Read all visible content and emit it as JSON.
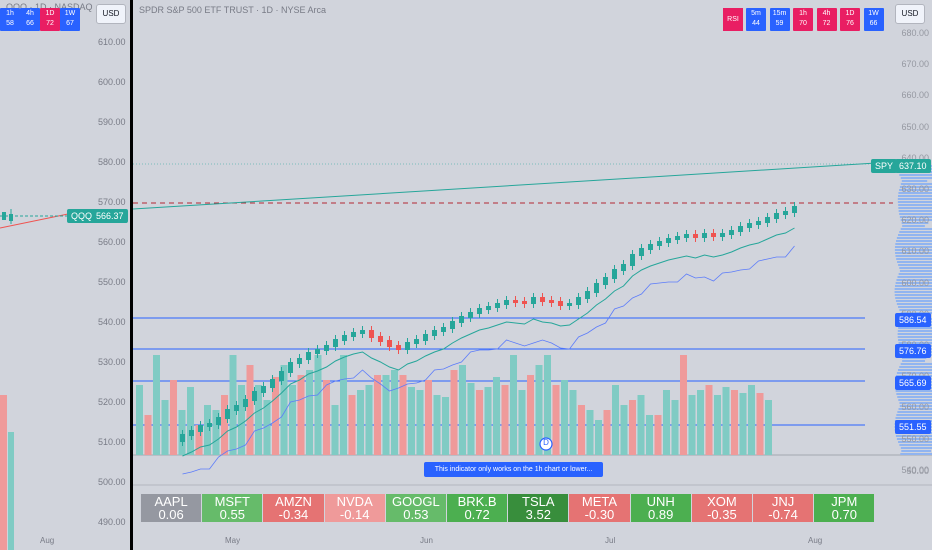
{
  "left_chart": {
    "title": "QQQ · 1D · NASDAQ",
    "timeframes": [
      {
        "label": "1h",
        "value": "58",
        "color": "#2962ff"
      },
      {
        "label": "4h",
        "value": "66",
        "color": "#2962ff"
      },
      {
        "label": "1D",
        "value": "72",
        "color": "#e91e63"
      },
      {
        "label": "1W",
        "value": "67",
        "color": "#2962ff"
      }
    ],
    "price_axis": [
      "610.00",
      "600.00",
      "590.00",
      "580.00",
      "570.00",
      "560.00",
      "550.00",
      "540.00",
      "530.00",
      "520.00",
      "510.00",
      "500.00",
      "490.00"
    ],
    "symbol_tag": "QQQ",
    "price_tag": "566.37",
    "month": "Aug"
  },
  "main_chart": {
    "title": "SPDR S&P 500 ETF TRUST · 1D · NYSE Arca",
    "currency": "USD",
    "indicator_label": "RSI",
    "timeframes": [
      {
        "label": "5m",
        "value": "44"
      },
      {
        "label": "15m",
        "value": "59"
      },
      {
        "label": "1h",
        "value": "70"
      },
      {
        "label": "4h",
        "value": "72"
      },
      {
        "label": "1D",
        "value": "76"
      },
      {
        "label": "1W",
        "value": "66"
      }
    ],
    "timeframe_colors": [
      "#2962ff",
      "#2962ff",
      "#e91e63",
      "#e91e63",
      "#e91e63",
      "#2962ff"
    ],
    "price_axis": [
      "680.00",
      "670.00",
      "660.00",
      "650.00",
      "640.00",
      "630.00",
      "620.00",
      "610.00",
      "600.00",
      "590.00",
      "580.00",
      "570.00",
      "560.00",
      "550.00",
      "540.00"
    ],
    "lower_axis": [
      "50.00"
    ],
    "symbol_tag": "SPY",
    "price_tag": "637.10",
    "level_tags": [
      "586.54",
      "576.76",
      "565.69",
      "551.55"
    ],
    "months": [
      "May",
      "Jun",
      "Jul",
      "Aug"
    ],
    "notice": "This indicator only works on the 1h chart or lower...",
    "event_marker": "D"
  },
  "stocks": [
    {
      "symbol": "AAPL",
      "value": "0.06",
      "color": "#9598a1"
    },
    {
      "symbol": "MSFT",
      "value": "0.55",
      "color": "#66bb6a"
    },
    {
      "symbol": "AMZN",
      "value": "-0.34",
      "color": "#e57373"
    },
    {
      "symbol": "NVDA",
      "value": "-0.14",
      "color": "#ef9a9a"
    },
    {
      "symbol": "GOOGL",
      "value": "0.53",
      "color": "#66bb6a"
    },
    {
      "symbol": "BRK.B",
      "value": "0.72",
      "color": "#4caf50"
    },
    {
      "symbol": "TSLA",
      "value": "3.52",
      "color": "#388e3c"
    },
    {
      "symbol": "META",
      "value": "-0.30",
      "color": "#e57373"
    },
    {
      "symbol": "UNH",
      "value": "0.89",
      "color": "#4caf50"
    },
    {
      "symbol": "XOM",
      "value": "-0.35",
      "color": "#e57373"
    },
    {
      "symbol": "JNJ",
      "value": "-0.74",
      "color": "#e57373"
    },
    {
      "symbol": "JPM",
      "value": "0.70",
      "color": "#4caf50"
    }
  ]
}
